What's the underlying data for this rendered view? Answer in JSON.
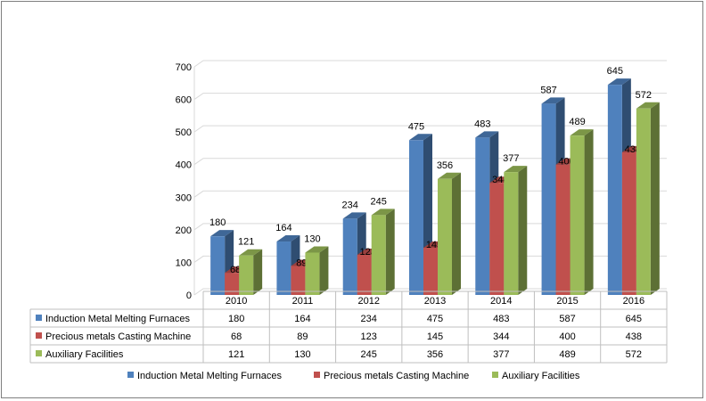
{
  "chart_data": {
    "type": "bar",
    "categories": [
      "2010",
      "2011",
      "2012",
      "2013",
      "2014",
      "2015",
      "2016"
    ],
    "series": [
      {
        "name": "Induction Metal Melting Furnaces",
        "values": [
          180,
          164,
          234,
          475,
          483,
          587,
          645
        ],
        "color": "#4F81BD"
      },
      {
        "name": "Precious metals Casting Machine",
        "values": [
          68,
          89,
          123,
          145,
          344,
          400,
          438
        ],
        "color": "#C0504D"
      },
      {
        "name": "Auxiliary Facilities",
        "values": [
          121,
          130,
          245,
          356,
          377,
          489,
          572
        ],
        "color": "#9BBB59"
      }
    ],
    "data_labels": {
      "s0": [
        "180",
        "164",
        "234",
        "475",
        "483",
        "587",
        "645"
      ],
      "s1": [
        "68",
        "89",
        "123",
        "145",
        "344",
        "400",
        "438"
      ],
      "s2": [
        "121",
        "130",
        "245",
        "356",
        "377",
        "489",
        "572"
      ]
    },
    "y_ticks": [
      "0",
      "100",
      "200",
      "300",
      "400",
      "500",
      "600",
      "700"
    ],
    "ylim": [
      0,
      700
    ],
    "grid": true,
    "three_d": true,
    "data_table": true,
    "legend_position": "bottom",
    "title": "",
    "xlabel": "",
    "ylabel": ""
  }
}
